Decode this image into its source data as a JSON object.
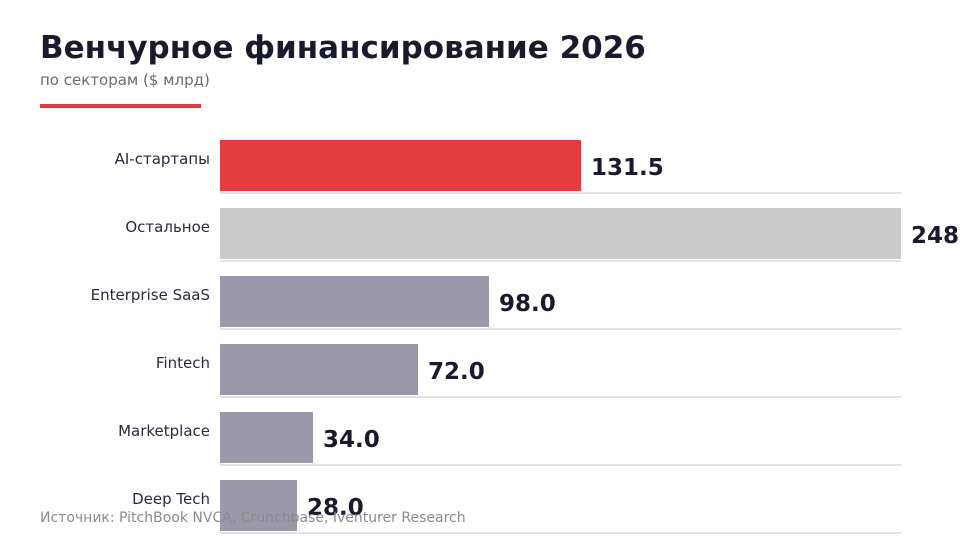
{
  "header": {
    "title": "Венчурное финансирование 2026",
    "subtitle": "по секторам ($ млрд)"
  },
  "footer": {
    "source": "Источник: PitchBook NVCA, Crunchbase, Iventurer Research"
  },
  "colors": {
    "highlight": "#e63b3f",
    "other": "#cbcbcb",
    "default": "#9b99a9",
    "text_dark": "#1a1a2e",
    "accent": "#e03a3e"
  },
  "chart_data": {
    "type": "bar",
    "orientation": "horizontal",
    "title": "Венчурное финансирование 2026",
    "subtitle": "по секторам ($ млрд)",
    "categories": [
      "AI-стартапы",
      "Остальное",
      "Enterprise SaaS",
      "Fintech",
      "Marketplace",
      "Deep Tech"
    ],
    "values": [
      131.5,
      248,
      98.0,
      72.0,
      34.0,
      28.0
    ],
    "value_labels": [
      "131.5",
      "248",
      "98.0",
      "72.0",
      "34.0",
      "28.0"
    ],
    "bar_colors": [
      "highlight",
      "other",
      "default",
      "default",
      "default",
      "default"
    ],
    "xlabel": "",
    "ylabel": "",
    "xlim": [
      0,
      248
    ],
    "grid": false,
    "legend": "none"
  }
}
